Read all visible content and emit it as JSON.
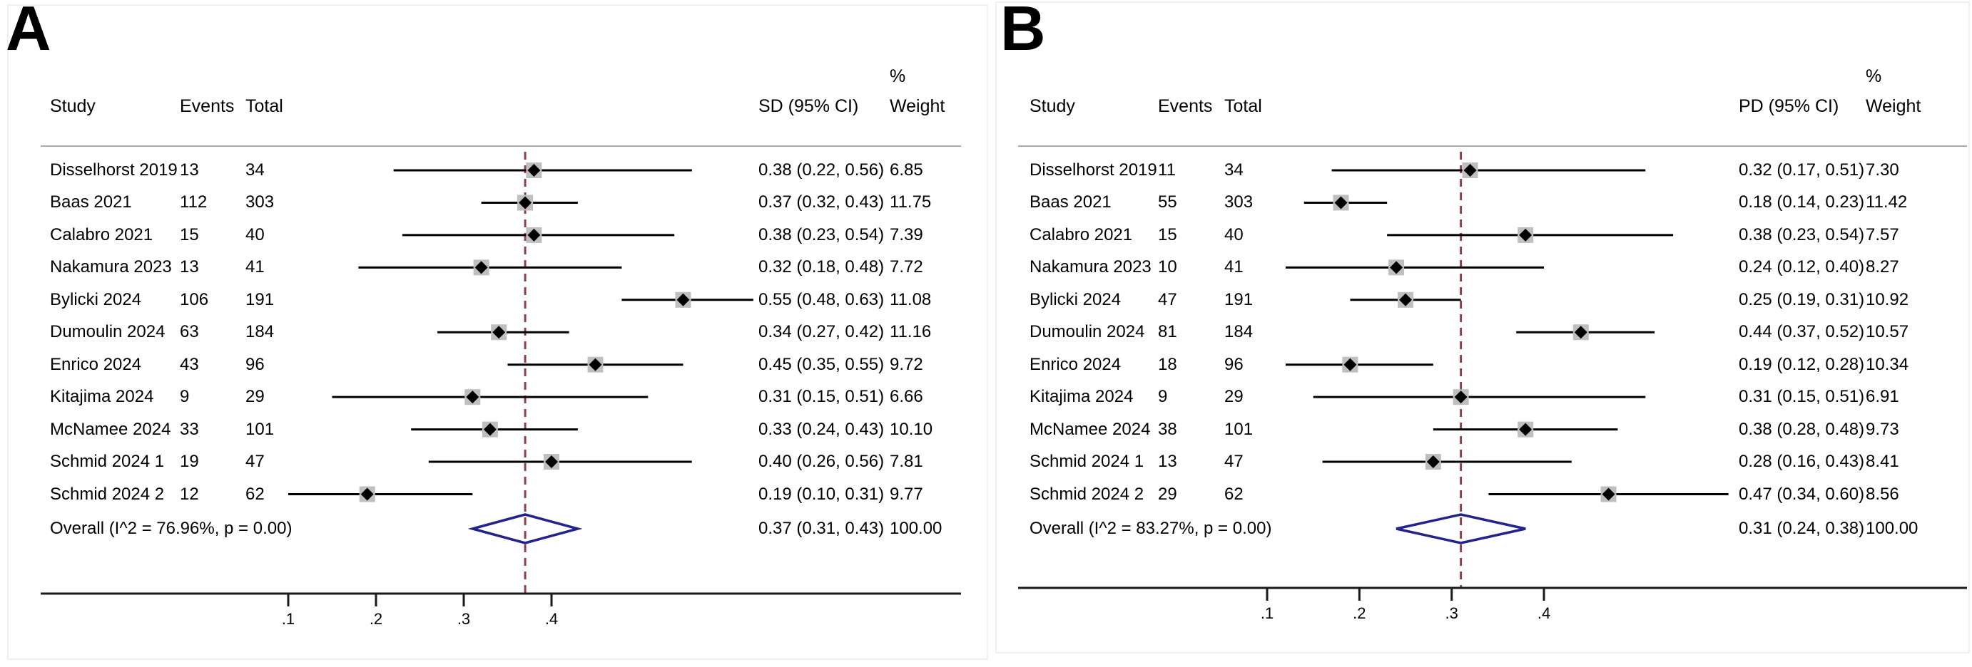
{
  "chart_data": [
    {
      "type": "forest",
      "panel_label": "A",
      "columns": {
        "study": "Study",
        "events": "Events",
        "total": "Total",
        "effect": "SD (95% CI)",
        "percent": "%",
        "weight": "Weight"
      },
      "x_ticks": [
        {
          "label": ".1",
          "value": 0.1
        },
        {
          "label": ".2",
          "value": 0.2
        },
        {
          "label": ".3",
          "value": 0.3
        },
        {
          "label": ".4",
          "value": 0.4
        }
      ],
      "studies": [
        {
          "name": "Disselhorst 2019",
          "events": "13",
          "total": "34",
          "est": 0.38,
          "lo": 0.22,
          "hi": 0.56,
          "ci_text": "0.38 (0.22, 0.56)",
          "weight": "6.85"
        },
        {
          "name": "Baas 2021",
          "events": "112",
          "total": "303",
          "est": 0.37,
          "lo": 0.32,
          "hi": 0.43,
          "ci_text": "0.37 (0.32, 0.43)",
          "weight": "11.75"
        },
        {
          "name": "Calabro 2021",
          "events": "15",
          "total": "40",
          "est": 0.38,
          "lo": 0.23,
          "hi": 0.54,
          "ci_text": "0.38 (0.23, 0.54)",
          "weight": "7.39"
        },
        {
          "name": "Nakamura 2023",
          "events": "13",
          "total": "41",
          "est": 0.32,
          "lo": 0.18,
          "hi": 0.48,
          "ci_text": "0.32 (0.18, 0.48)",
          "weight": "7.72"
        },
        {
          "name": "Bylicki 2024",
          "events": "106",
          "total": "191",
          "est": 0.55,
          "lo": 0.48,
          "hi": 0.63,
          "ci_text": "0.55 (0.48, 0.63)",
          "weight": "11.08"
        },
        {
          "name": "Dumoulin 2024",
          "events": "63",
          "total": "184",
          "est": 0.34,
          "lo": 0.27,
          "hi": 0.42,
          "ci_text": "0.34 (0.27, 0.42)",
          "weight": "11.16"
        },
        {
          "name": "Enrico 2024",
          "events": "43",
          "total": "96",
          "est": 0.45,
          "lo": 0.35,
          "hi": 0.55,
          "ci_text": "0.45 (0.35, 0.55)",
          "weight": "9.72"
        },
        {
          "name": "Kitajima 2024",
          "events": "9",
          "total": "29",
          "est": 0.31,
          "lo": 0.15,
          "hi": 0.51,
          "ci_text": "0.31 (0.15, 0.51)",
          "weight": "6.66"
        },
        {
          "name": "McNamee 2024",
          "events": "33",
          "total": "101",
          "est": 0.33,
          "lo": 0.24,
          "hi": 0.43,
          "ci_text": "0.33 (0.24, 0.43)",
          "weight": "10.10"
        },
        {
          "name": "Schmid 2024 1",
          "events": "19",
          "total": "47",
          "est": 0.4,
          "lo": 0.26,
          "hi": 0.56,
          "ci_text": "0.40 (0.26, 0.56)",
          "weight": "7.81"
        },
        {
          "name": "Schmid 2024 2",
          "events": "12",
          "total": "62",
          "est": 0.19,
          "lo": 0.1,
          "hi": 0.31,
          "ci_text": "0.19 (0.10, 0.31)",
          "weight": "9.77"
        }
      ],
      "overall": {
        "name": "Overall  (I^2 = 76.96%, p = 0.00)",
        "est": 0.37,
        "lo": 0.31,
        "hi": 0.43,
        "ci_text": "0.37 (0.31, 0.43)",
        "weight": "100.00"
      },
      "colors": {
        "dashed_line": "#8f4347",
        "diamond": "#23238E",
        "ci_line": "#000000",
        "marker": "#000000",
        "marker_bg": "#bfbfbf",
        "rule": "#ababab",
        "axis": "#1a1a1a"
      }
    },
    {
      "type": "forest",
      "panel_label": "B",
      "columns": {
        "study": "Study",
        "events": "Events",
        "total": "Total",
        "effect": "PD (95% CI)",
        "percent": "%",
        "weight": "Weight"
      },
      "x_ticks": [
        {
          "label": ".1",
          "value": 0.1
        },
        {
          "label": ".2",
          "value": 0.2
        },
        {
          "label": ".3",
          "value": 0.3
        },
        {
          "label": ".4",
          "value": 0.4
        }
      ],
      "studies": [
        {
          "name": "Disselhorst 2019",
          "events": "11",
          "total": "34",
          "est": 0.32,
          "lo": 0.17,
          "hi": 0.51,
          "ci_text": "0.32 (0.17, 0.51)",
          "weight": "7.30"
        },
        {
          "name": "Baas 2021",
          "events": "55",
          "total": "303",
          "est": 0.18,
          "lo": 0.14,
          "hi": 0.23,
          "ci_text": "0.18 (0.14, 0.23)",
          "weight": "11.42"
        },
        {
          "name": "Calabro 2021",
          "events": "15",
          "total": "40",
          "est": 0.38,
          "lo": 0.23,
          "hi": 0.54,
          "ci_text": "0.38 (0.23, 0.54)",
          "weight": "7.57"
        },
        {
          "name": "Nakamura 2023",
          "events": "10",
          "total": "41",
          "est": 0.24,
          "lo": 0.12,
          "hi": 0.4,
          "ci_text": "0.24 (0.12, 0.40)",
          "weight": "8.27"
        },
        {
          "name": "Bylicki 2024",
          "events": "47",
          "total": "191",
          "est": 0.25,
          "lo": 0.19,
          "hi": 0.31,
          "ci_text": "0.25 (0.19, 0.31)",
          "weight": "10.92"
        },
        {
          "name": "Dumoulin 2024",
          "events": "81",
          "total": "184",
          "est": 0.44,
          "lo": 0.37,
          "hi": 0.52,
          "ci_text": "0.44 (0.37, 0.52)",
          "weight": "10.57"
        },
        {
          "name": "Enrico 2024",
          "events": "18",
          "total": "96",
          "est": 0.19,
          "lo": 0.12,
          "hi": 0.28,
          "ci_text": "0.19 (0.12, 0.28)",
          "weight": "10.34"
        },
        {
          "name": "Kitajima 2024",
          "events": "9",
          "total": "29",
          "est": 0.31,
          "lo": 0.15,
          "hi": 0.51,
          "ci_text": "0.31 (0.15, 0.51)",
          "weight": "6.91"
        },
        {
          "name": "McNamee 2024",
          "events": "38",
          "total": "101",
          "est": 0.38,
          "lo": 0.28,
          "hi": 0.48,
          "ci_text": "0.38 (0.28, 0.48)",
          "weight": "9.73"
        },
        {
          "name": "Schmid 2024 1",
          "events": "13",
          "total": "47",
          "est": 0.28,
          "lo": 0.16,
          "hi": 0.43,
          "ci_text": "0.28 (0.16, 0.43)",
          "weight": "8.41"
        },
        {
          "name": "Schmid 2024 2",
          "events": "29",
          "total": "62",
          "est": 0.47,
          "lo": 0.34,
          "hi": 0.6,
          "ci_text": "0.47 (0.34, 0.60)",
          "weight": "8.56"
        }
      ],
      "overall": {
        "name": "Overall  (I^2 = 83.27%, p = 0.00)",
        "est": 0.31,
        "lo": 0.24,
        "hi": 0.38,
        "ci_text": "0.31 (0.24, 0.38)",
        "weight": "100.00"
      },
      "colors": {
        "dashed_line": "#8f4347",
        "diamond": "#23238E",
        "ci_line": "#000000",
        "marker": "#000000",
        "marker_bg": "#bfbfbf",
        "rule": "#ababab",
        "axis": "#1a1a1a"
      }
    }
  ]
}
